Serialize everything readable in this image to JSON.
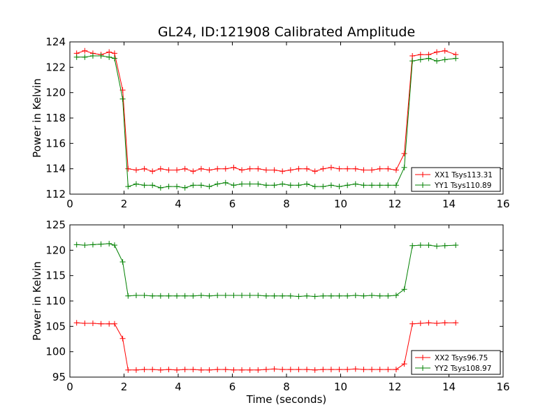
{
  "title": "GL24, ID:121908 Calibrated Amplitude",
  "xlabel": "Time (seconds)",
  "colors": {
    "red": "#ff0000",
    "green": "#008000"
  },
  "chart_data": [
    {
      "type": "line",
      "ylabel": "Power in Kelvin",
      "xlim": [
        0,
        16
      ],
      "ylim": [
        112,
        124
      ],
      "x_ticks": [
        "0",
        "2",
        "4",
        "6",
        "8",
        "10",
        "12",
        "14",
        "16"
      ],
      "y_ticks": [
        "112",
        "114",
        "116",
        "118",
        "120",
        "122",
        "124"
      ],
      "legend_position": "lower-right",
      "x": [
        0.25,
        0.55,
        0.85,
        1.15,
        1.45,
        1.65,
        1.95,
        2.15,
        2.45,
        2.75,
        3.05,
        3.35,
        3.65,
        3.95,
        4.25,
        4.55,
        4.85,
        5.15,
        5.45,
        5.75,
        6.05,
        6.35,
        6.65,
        6.95,
        7.25,
        7.55,
        7.85,
        8.15,
        8.45,
        8.75,
        9.05,
        9.35,
        9.65,
        9.95,
        10.25,
        10.55,
        10.85,
        11.15,
        11.45,
        11.75,
        12.05,
        12.35,
        12.65,
        12.95,
        13.25,
        13.55,
        13.85,
        14.25
      ],
      "series": [
        {
          "name": "XX1 Tsys113.31",
          "color": "#ff0000",
          "values": [
            123.1,
            123.3,
            123.1,
            123.0,
            123.2,
            123.1,
            120.2,
            114.0,
            113.9,
            114.0,
            113.8,
            114.0,
            113.9,
            113.9,
            114.0,
            113.8,
            114.0,
            113.9,
            114.0,
            114.0,
            114.1,
            113.9,
            114.0,
            114.0,
            113.9,
            113.9,
            113.8,
            113.9,
            114.0,
            114.0,
            113.8,
            114.0,
            114.1,
            114.0,
            114.0,
            114.0,
            113.9,
            113.9,
            114.0,
            114.0,
            113.9,
            115.2,
            122.9,
            123.0,
            123.0,
            123.2,
            123.3,
            123.0
          ]
        },
        {
          "name": "YY1 Tsys110.89",
          "color": "#008000",
          "values": [
            122.8,
            122.8,
            122.9,
            122.9,
            122.8,
            122.7,
            119.5,
            112.6,
            112.8,
            112.7,
            112.7,
            112.5,
            112.6,
            112.6,
            112.5,
            112.7,
            112.7,
            112.6,
            112.8,
            112.9,
            112.7,
            112.8,
            112.8,
            112.8,
            112.7,
            112.7,
            112.8,
            112.7,
            112.7,
            112.8,
            112.6,
            112.6,
            112.7,
            112.6,
            112.7,
            112.8,
            112.7,
            112.7,
            112.7,
            112.7,
            112.7,
            114.1,
            122.5,
            122.6,
            122.7,
            122.5,
            122.6,
            122.7
          ]
        }
      ]
    },
    {
      "type": "line",
      "ylabel": "Power in Kelvin",
      "xlabel": "Time (seconds)",
      "xlim": [
        0,
        16
      ],
      "ylim": [
        95,
        125
      ],
      "x_ticks": [
        "0",
        "2",
        "4",
        "6",
        "8",
        "10",
        "12",
        "14",
        "16"
      ],
      "y_ticks": [
        "95",
        "100",
        "105",
        "110",
        "115",
        "120",
        "125"
      ],
      "legend_position": "lower-right",
      "x": [
        0.25,
        0.55,
        0.85,
        1.15,
        1.45,
        1.65,
        1.95,
        2.15,
        2.45,
        2.75,
        3.05,
        3.35,
        3.65,
        3.95,
        4.25,
        4.55,
        4.85,
        5.15,
        5.45,
        5.75,
        6.05,
        6.35,
        6.65,
        6.95,
        7.25,
        7.55,
        7.85,
        8.15,
        8.45,
        8.75,
        9.05,
        9.35,
        9.65,
        9.95,
        10.25,
        10.55,
        10.85,
        11.15,
        11.45,
        11.75,
        12.05,
        12.35,
        12.65,
        12.95,
        13.25,
        13.55,
        13.85,
        14.25
      ],
      "series": [
        {
          "name": "XX2 Tsys96.75",
          "color": "#ff0000",
          "values": [
            105.7,
            105.6,
            105.6,
            105.5,
            105.5,
            105.5,
            102.6,
            96.4,
            96.4,
            96.5,
            96.5,
            96.4,
            96.5,
            96.4,
            96.5,
            96.5,
            96.4,
            96.4,
            96.5,
            96.5,
            96.4,
            96.4,
            96.4,
            96.4,
            96.5,
            96.6,
            96.5,
            96.5,
            96.5,
            96.5,
            96.4,
            96.5,
            96.5,
            96.5,
            96.5,
            96.6,
            96.5,
            96.5,
            96.5,
            96.5,
            96.5,
            97.6,
            105.5,
            105.6,
            105.7,
            105.6,
            105.7,
            105.7
          ]
        },
        {
          "name": "YY2 Tsys108.97",
          "color": "#008000",
          "values": [
            121.1,
            121.0,
            121.1,
            121.2,
            121.3,
            121.0,
            117.7,
            111.0,
            111.1,
            111.1,
            111.0,
            111.0,
            111.0,
            111.0,
            111.0,
            111.0,
            111.1,
            111.0,
            111.1,
            111.1,
            111.1,
            111.1,
            111.1,
            111.1,
            111.0,
            111.0,
            111.0,
            111.0,
            110.9,
            111.0,
            110.9,
            111.0,
            111.0,
            111.0,
            111.0,
            111.1,
            111.0,
            111.1,
            111.0,
            111.0,
            111.1,
            112.3,
            120.9,
            121.0,
            121.0,
            120.8,
            120.9,
            121.0
          ]
        }
      ]
    }
  ]
}
